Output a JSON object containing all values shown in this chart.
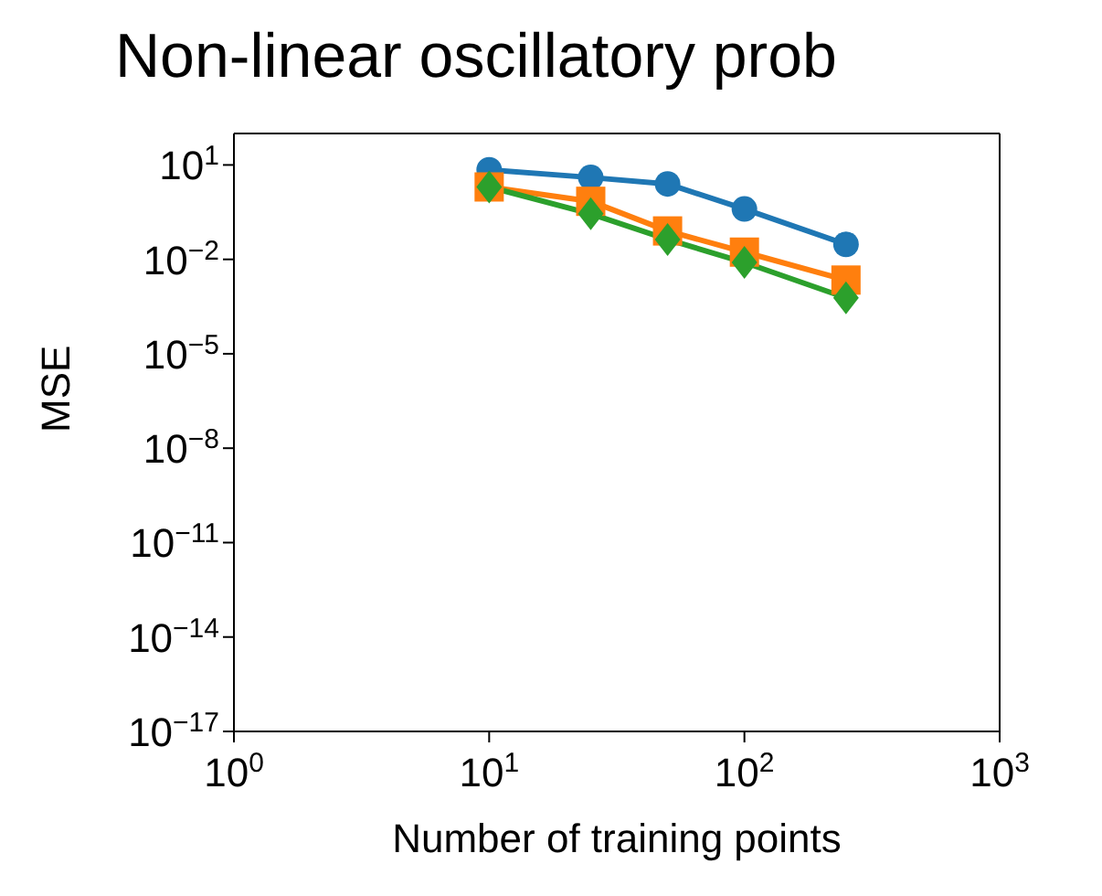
{
  "chart_data": {
    "type": "line",
    "title": "Non-linear oscillatory prob",
    "xlabel": "Number of training points",
    "ylabel": "MSE",
    "log": "xy",
    "xlim": [
      1,
      1000
    ],
    "xticks": [
      {
        "value": 1,
        "label": "10$^{0}$"
      },
      {
        "value": 10,
        "label": "10$^{1}$"
      },
      {
        "value": 100,
        "label": "10$^{2}$"
      },
      {
        "value": 1000,
        "label": "10$^{3}$"
      }
    ],
    "ylim": [
      1e-17,
      100
    ],
    "yticks": [
      {
        "value": 1e-17,
        "label": "10$^{−17}$"
      },
      {
        "value": 1e-14,
        "label": "10$^{−14}$"
      },
      {
        "value": 1e-11,
        "label": "10$^{−11}$"
      },
      {
        "value": 1e-08,
        "label": "10$^{−8}$"
      },
      {
        "value": 1e-05,
        "label": "10$^{−5}$"
      },
      {
        "value": 0.01,
        "label": "10$^{−2}$"
      },
      {
        "value": 10,
        "label": "10$^{1}$"
      }
    ],
    "x": [
      10,
      25,
      50,
      100,
      250
    ],
    "series": [
      {
        "color": "#1f77b4",
        "marker": "circle",
        "values": [
          7,
          4,
          2.5,
          0.4,
          0.03
        ]
      },
      {
        "color": "#ff7f0e",
        "marker": "square",
        "values": [
          2,
          0.7,
          0.08,
          0.017,
          0.0022
        ]
      },
      {
        "color": "#2ca02c",
        "marker": "diamond",
        "values": [
          2,
          0.28,
          0.043,
          0.008,
          0.0006
        ]
      }
    ]
  }
}
